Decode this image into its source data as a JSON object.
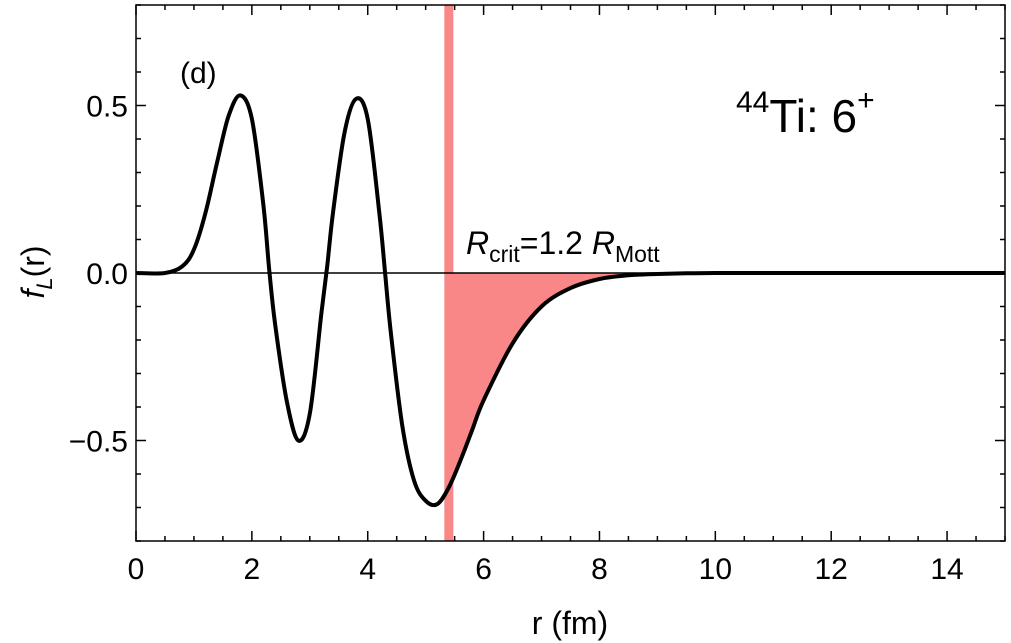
{
  "chart_data": {
    "type": "line",
    "xlabel": "r (fm)",
    "ylabel_main": "f",
    "ylabel_sub": "L",
    "ylabel_tail": "(r)",
    "xlim": [
      0,
      15
    ],
    "ylim": [
      -0.8,
      0.8
    ],
    "x_ticks": [
      0,
      2,
      4,
      6,
      8,
      10,
      12,
      14
    ],
    "x_tick_labels": [
      "0",
      "2",
      "4",
      "6",
      "8",
      "10",
      "12",
      "14"
    ],
    "y_ticks": [
      -0.5,
      0.0,
      0.5
    ],
    "y_tick_labels": [
      "−0.5",
      "0.0",
      "0.5"
    ],
    "grid": false,
    "panel_label": "(d)",
    "nucleus_label": {
      "mass_number": "44",
      "element": "Ti: 6",
      "superscript": "+"
    },
    "critical_radius": {
      "x": 5.4,
      "label_main": "R",
      "label_sub1": "crit",
      "label_mid": "=1.2 ",
      "label_main2": "R",
      "label_sub2": "Mott",
      "color": "#f98787"
    },
    "series": [
      {
        "x": [
          0,
          0.5,
          0.8,
          1.0,
          1.2,
          1.4,
          1.6,
          1.8,
          2.0,
          2.2,
          2.3,
          2.4,
          2.6,
          2.8,
          3.0,
          3.2,
          3.3,
          3.4,
          3.6,
          3.8,
          4.0,
          4.2,
          4.3,
          4.4,
          4.6,
          4.8,
          5.0,
          5.2,
          5.4,
          5.6,
          5.8,
          6.0,
          6.5,
          7.0,
          7.5,
          8.0,
          8.5,
          9.0,
          9.5,
          10.0,
          11.0,
          12.0,
          13.0,
          14.0,
          15.0
        ],
        "y": [
          0.0,
          0.0,
          0.02,
          0.07,
          0.18,
          0.33,
          0.47,
          0.53,
          0.46,
          0.2,
          0.01,
          -0.15,
          -0.38,
          -0.5,
          -0.42,
          -0.12,
          0.02,
          0.18,
          0.42,
          0.52,
          0.46,
          0.18,
          0.0,
          -0.18,
          -0.46,
          -0.62,
          -0.68,
          -0.69,
          -0.64,
          -0.56,
          -0.47,
          -0.38,
          -0.21,
          -0.1,
          -0.045,
          -0.018,
          -0.007,
          -0.003,
          -0.001,
          0.0,
          0.0,
          0.0,
          0.0,
          0.0,
          0.0
        ],
        "color": "#000000"
      }
    ]
  }
}
